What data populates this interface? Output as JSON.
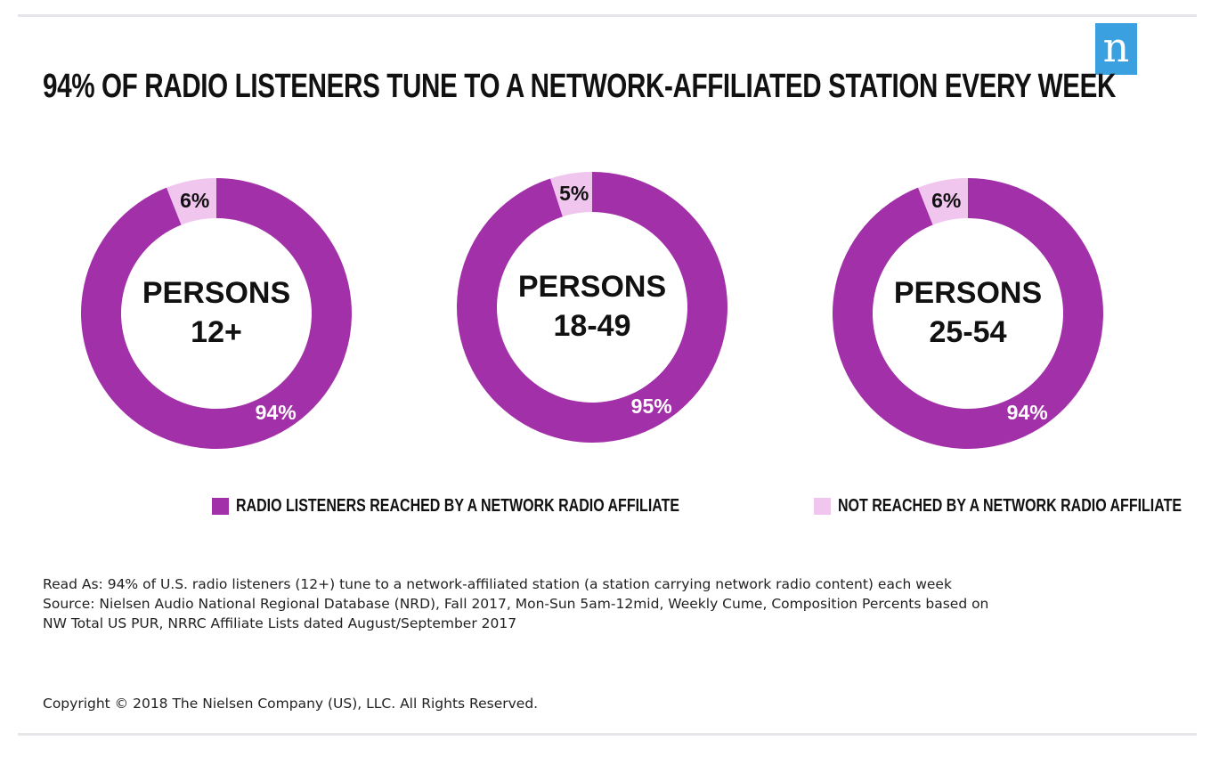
{
  "title": "94% OF RADIO LISTENERS TUNE TO A NETWORK-AFFILIATED STATION EVERY WEEK",
  "logo_text": "n",
  "colors": {
    "reached": "#a230a8",
    "not_reached": "#f0c6ef",
    "logo": "#3aa0e0"
  },
  "chart_data": [
    {
      "type": "pie",
      "style": "donut",
      "center_label": [
        "PERSONS",
        "12+"
      ],
      "slices": [
        {
          "name": "RADIO LISTENERS REACHED BY A NETWORK RADIO AFFILIATE",
          "value": 94,
          "label": "94%"
        },
        {
          "name": "NOT REACHED BY A NETWORK RADIO AFFILIATE",
          "value": 6,
          "label": "6%"
        }
      ]
    },
    {
      "type": "pie",
      "style": "donut",
      "center_label": [
        "PERSONS",
        "18-49"
      ],
      "slices": [
        {
          "name": "RADIO LISTENERS REACHED BY A NETWORK RADIO AFFILIATE",
          "value": 95,
          "label": "95%"
        },
        {
          "name": "NOT REACHED BY A NETWORK RADIO AFFILIATE",
          "value": 5,
          "label": "5%"
        }
      ]
    },
    {
      "type": "pie",
      "style": "donut",
      "center_label": [
        "PERSONS",
        "25-54"
      ],
      "slices": [
        {
          "name": "RADIO LISTENERS REACHED BY A NETWORK RADIO AFFILIATE",
          "value": 94,
          "label": "94%"
        },
        {
          "name": "NOT REACHED BY A NETWORK RADIO AFFILIATE",
          "value": 6,
          "label": "6%"
        }
      ]
    }
  ],
  "legend": [
    {
      "label": "RADIO LISTENERS REACHED BY A NETWORK RADIO AFFILIATE",
      "color": "#a230a8"
    },
    {
      "label": "NOT REACHED BY A NETWORK RADIO AFFILIATE",
      "color": "#f0c6ef"
    }
  ],
  "notes": {
    "read_as": "Read As: 94% of U.S. radio listeners (12+) tune to a network-affiliated station (a station carrying network radio content) each week",
    "source_line1": "Source: Nielsen Audio National Regional Database (NRD), Fall 2017, Mon-Sun 5am-12mid, Weekly Cume, Composition Percents based on",
    "source_line2": "NW Total US PUR, NRRC Affiliate Lists dated August/September 2017"
  },
  "copyright": "Copyright © 2018 The Nielsen Company (US), LLC. All Rights Reserved."
}
